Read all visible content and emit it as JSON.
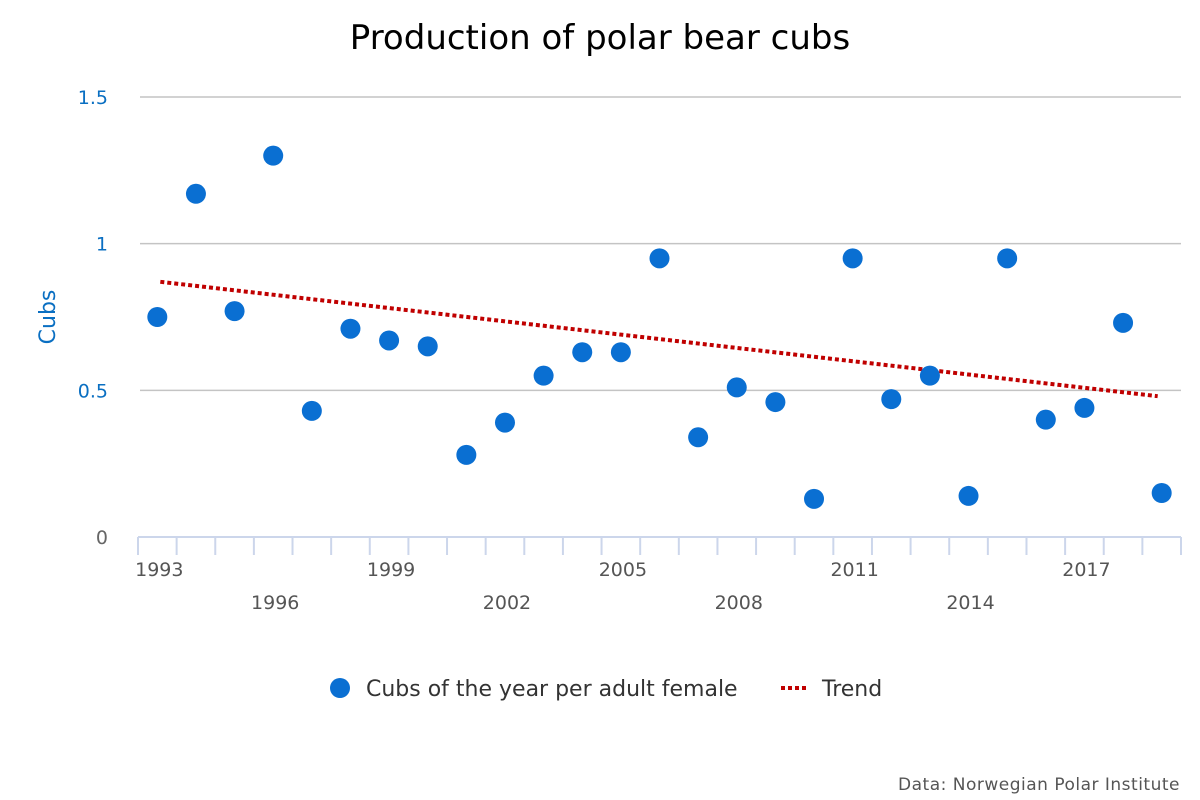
{
  "chart_data": {
    "type": "scatter",
    "title": "Production of polar bear cubs",
    "xlabel": "",
    "ylabel": "Cubs",
    "ylim": [
      0,
      1.5
    ],
    "y_ticks": [
      "0",
      "0.5",
      "1",
      "1.5"
    ],
    "y_tick_values": [
      0,
      0.5,
      1,
      1.5
    ],
    "grid": true,
    "x": [
      1993,
      1994,
      1995,
      1996,
      1997,
      1998,
      1999,
      2000,
      2001,
      2002,
      2003,
      2004,
      2005,
      2006,
      2007,
      2008,
      2009,
      2010,
      2011,
      2012,
      2013,
      2014,
      2015,
      2016,
      2017,
      2018,
      2019
    ],
    "x_tick_labels": [
      "1993",
      "1996",
      "1999",
      "2002",
      "2005",
      "2008",
      "2011",
      "2014",
      "2017"
    ],
    "series": [
      {
        "name": "Cubs of the year per adult female",
        "type": "scatter",
        "color": "#0a6fd2",
        "values": [
          0.75,
          1.17,
          0.77,
          1.3,
          0.43,
          0.71,
          0.67,
          0.65,
          0.28,
          0.39,
          0.55,
          0.63,
          0.63,
          0.95,
          0.34,
          0.51,
          0.46,
          0.13,
          0.95,
          0.47,
          0.55,
          0.14,
          0.95,
          0.4,
          0.44,
          0.73,
          0.15
        ]
      },
      {
        "name": "Trend",
        "type": "line",
        "style": "dotted",
        "color": "#c00000",
        "x": [
          1993,
          2019
        ],
        "values": [
          0.87,
          0.48
        ]
      }
    ],
    "legend_position": "bottom-center",
    "source": "Data: Norwegian Polar Institute"
  }
}
